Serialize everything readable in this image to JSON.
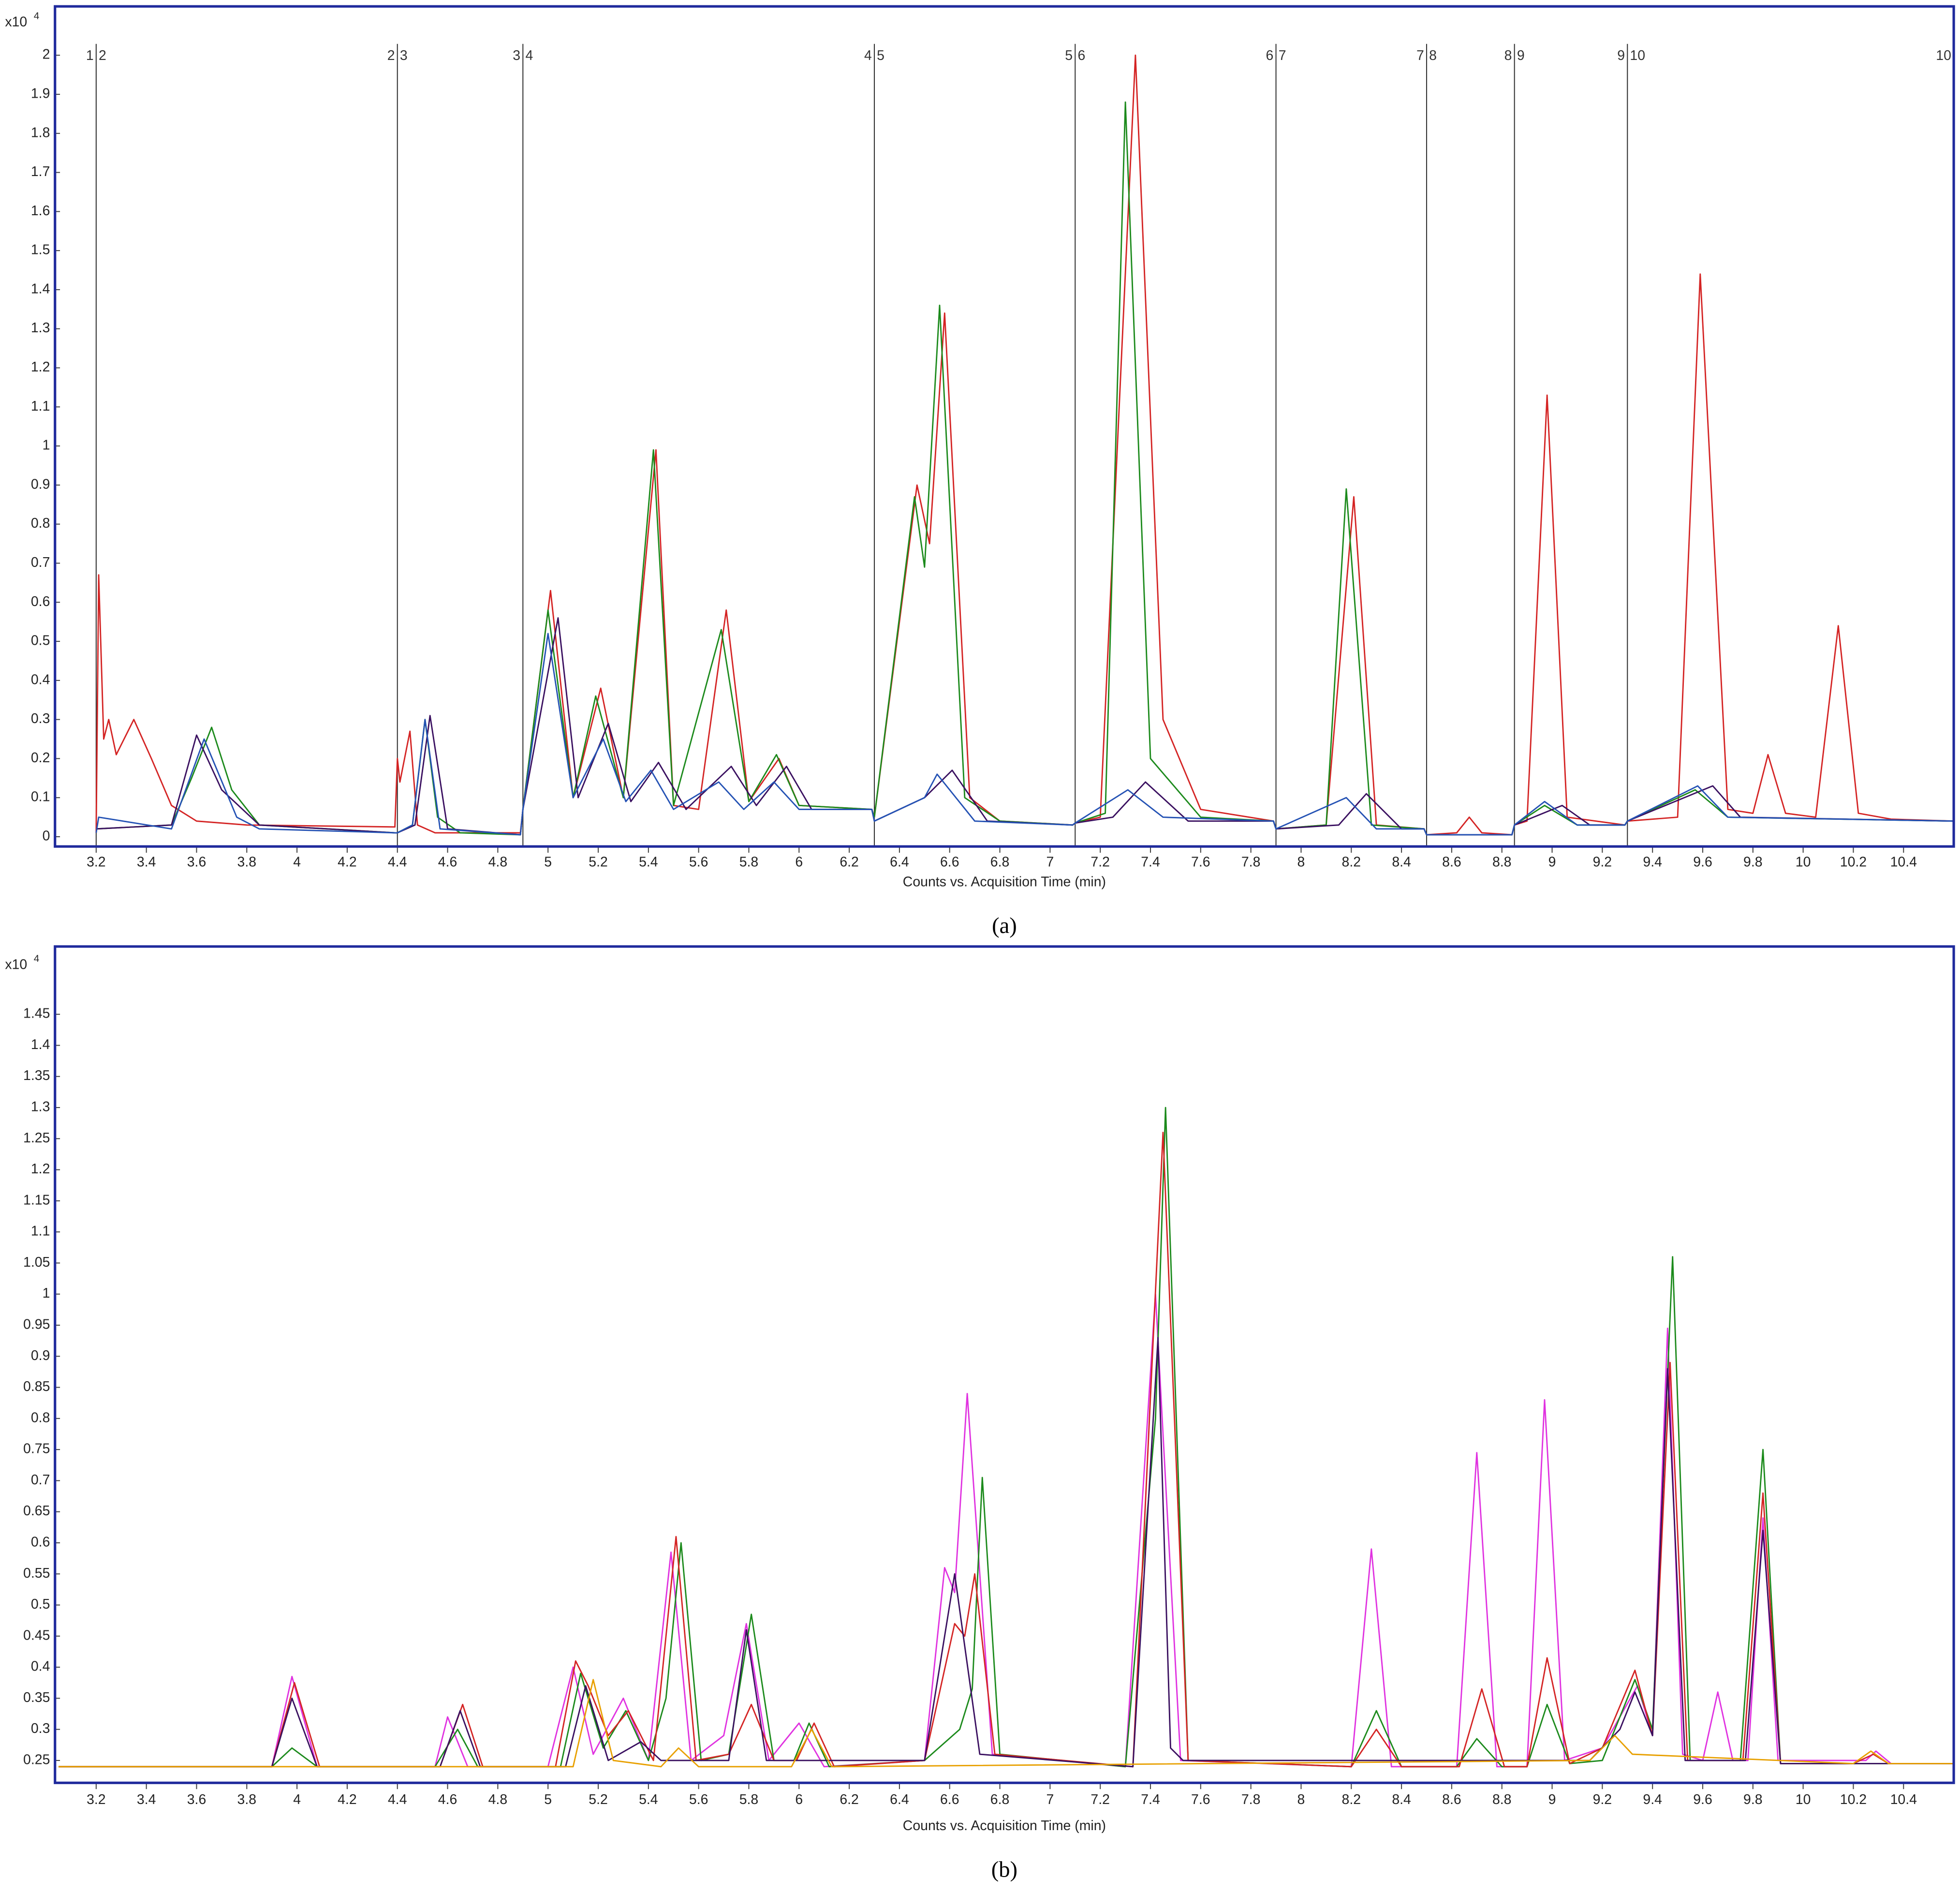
{
  "chart_data": [
    {
      "type": "line",
      "caption": "(a)",
      "y_scale_label": "x10",
      "y_scale_exponent": "4",
      "x_label": "Counts vs. Acquisition Time (min)",
      "xlim": [
        3.036,
        10.6
      ],
      "ylim": [
        -0.025,
        2.125
      ],
      "xticks": [
        3.2,
        3.4,
        3.6,
        3.8,
        4,
        4.2,
        4.4,
        4.6,
        4.8,
        5,
        5.2,
        5.4,
        5.6,
        5.8,
        6,
        6.2,
        6.4,
        6.6,
        6.8,
        7,
        7.2,
        7.4,
        7.6,
        7.8,
        8,
        8.2,
        8.4,
        8.6,
        8.8,
        9,
        9.2,
        9.4,
        9.6,
        9.8,
        10,
        10.2,
        10.4
      ],
      "yticks": [
        0,
        0.1,
        0.2,
        0.3,
        0.4,
        0.5,
        0.6,
        0.7,
        0.8,
        0.9,
        1,
        1.1,
        1.2,
        1.3,
        1.4,
        1.5,
        1.6,
        1.7,
        1.8,
        1.9,
        2
      ],
      "grid": false,
      "segments": [
        {
          "x": 3.2,
          "left": "1",
          "right": "2"
        },
        {
          "x": 4.4,
          "left": "2",
          "right": "3"
        },
        {
          "x": 4.9,
          "left": "3",
          "right": "4"
        },
        {
          "x": 6.3,
          "left": "4",
          "right": "5"
        },
        {
          "x": 7.1,
          "left": "5",
          "right": "6"
        },
        {
          "x": 7.9,
          "left": "6",
          "right": "7"
        },
        {
          "x": 8.5,
          "left": "7",
          "right": "8"
        },
        {
          "x": 8.85,
          "left": "8",
          "right": "9"
        },
        {
          "x": 9.3,
          "left": "9",
          "right": "10"
        },
        {
          "x": 10.6,
          "left": "10"
        }
      ],
      "series": [
        {
          "color": "#d42424",
          "x": [
            3.2,
            3.21,
            3.23,
            3.25,
            3.28,
            3.35,
            3.42,
            3.5,
            3.6,
            3.8,
            4.39,
            4.4,
            4.41,
            4.45,
            4.48,
            4.55,
            4.89,
            4.9,
            5.01,
            5.1,
            5.21,
            5.3,
            5.43,
            5.5,
            5.6,
            5.71,
            5.8,
            5.92,
            6.0,
            6.29,
            6.3,
            6.47,
            6.52,
            6.58,
            6.68,
            6.8,
            7.09,
            7.1,
            7.2,
            7.34,
            7.45,
            7.6,
            7.89,
            7.9,
            8.1,
            8.21,
            8.3,
            8.49,
            8.5,
            8.62,
            8.67,
            8.72,
            8.84,
            8.85,
            8.9,
            8.98,
            9.06,
            9.29,
            9.3,
            9.5,
            9.59,
            9.7,
            9.8,
            9.86,
            9.93,
            10.05,
            10.14,
            10.22,
            10.35,
            10.6
          ],
          "values": [
            0.01,
            0.67,
            0.25,
            0.3,
            0.21,
            0.3,
            0.2,
            0.08,
            0.04,
            0.03,
            0.025,
            0.2,
            0.14,
            0.27,
            0.03,
            0.01,
            0.01,
            0.07,
            0.63,
            0.1,
            0.38,
            0.1,
            0.99,
            0.08,
            0.07,
            0.58,
            0.09,
            0.2,
            0.08,
            0.07,
            0.05,
            0.9,
            0.75,
            1.34,
            0.1,
            0.04,
            0.03,
            0.035,
            0.05,
            2.0,
            0.3,
            0.07,
            0.04,
            0.02,
            0.03,
            0.87,
            0.03,
            0.02,
            0.005,
            0.01,
            0.05,
            0.01,
            0.005,
            0.03,
            0.04,
            1.13,
            0.05,
            0.03,
            0.04,
            0.05,
            1.44,
            0.07,
            0.06,
            0.21,
            0.06,
            0.05,
            0.54,
            0.06,
            0.045,
            0.04
          ]
        },
        {
          "color": "#1c8a1c",
          "x": [
            3.2,
            3.5,
            3.58,
            3.66,
            3.74,
            3.85,
            4.39,
            4.4,
            4.46,
            4.51,
            4.56,
            4.65,
            4.89,
            4.9,
            5.0,
            5.1,
            5.19,
            5.3,
            5.42,
            5.5,
            5.69,
            5.8,
            5.91,
            6.0,
            6.29,
            6.3,
            6.46,
            6.5,
            6.56,
            6.66,
            6.8,
            7.09,
            7.1,
            7.22,
            7.3,
            7.4,
            7.6,
            7.89,
            7.9,
            8.1,
            8.18,
            8.28,
            8.49,
            8.5,
            8.84,
            8.85,
            8.97,
            9.1,
            9.29,
            9.3,
            9.57,
            9.7,
            10.6
          ],
          "values": [
            0.02,
            0.03,
            0.15,
            0.28,
            0.12,
            0.03,
            0.01,
            0.01,
            0.03,
            0.3,
            0.05,
            0.01,
            0.005,
            0.07,
            0.58,
            0.1,
            0.36,
            0.1,
            0.99,
            0.08,
            0.53,
            0.09,
            0.21,
            0.08,
            0.07,
            0.05,
            0.87,
            0.69,
            1.36,
            0.1,
            0.04,
            0.03,
            0.035,
            0.06,
            1.88,
            0.2,
            0.05,
            0.04,
            0.02,
            0.03,
            0.89,
            0.03,
            0.02,
            0.005,
            0.005,
            0.03,
            0.08,
            0.03,
            0.03,
            0.04,
            0.12,
            0.05,
            0.04
          ]
        },
        {
          "color": "#3a1060",
          "x": [
            3.2,
            3.5,
            3.6,
            3.7,
            3.85,
            4.39,
            4.4,
            4.47,
            4.53,
            4.6,
            4.89,
            4.9,
            5.04,
            5.12,
            5.24,
            5.33,
            5.44,
            5.55,
            5.73,
            5.83,
            5.95,
            6.05,
            6.29,
            6.3,
            6.5,
            6.61,
            6.75,
            7.09,
            7.1,
            7.25,
            7.38,
            7.55,
            7.89,
            7.9,
            8.15,
            8.26,
            8.4,
            8.49,
            8.5,
            8.84,
            8.85,
            9.04,
            9.15,
            9.29,
            9.3,
            9.64,
            9.75,
            10.6
          ],
          "values": [
            0.02,
            0.03,
            0.26,
            0.12,
            0.03,
            0.01,
            0.01,
            0.03,
            0.31,
            0.02,
            0.005,
            0.07,
            0.56,
            0.1,
            0.29,
            0.09,
            0.19,
            0.07,
            0.18,
            0.08,
            0.18,
            0.07,
            0.07,
            0.04,
            0.1,
            0.17,
            0.04,
            0.03,
            0.035,
            0.05,
            0.14,
            0.04,
            0.04,
            0.02,
            0.03,
            0.11,
            0.02,
            0.02,
            0.005,
            0.005,
            0.03,
            0.08,
            0.03,
            0.03,
            0.04,
            0.13,
            0.05,
            0.04
          ]
        },
        {
          "color": "#2452b4",
          "x": [
            3.2,
            3.21,
            3.5,
            3.63,
            3.76,
            3.85,
            4.39,
            4.4,
            4.46,
            4.51,
            4.57,
            4.89,
            4.9,
            5.0,
            5.1,
            5.22,
            5.31,
            5.41,
            5.5,
            5.68,
            5.78,
            5.9,
            6.0,
            6.29,
            6.3,
            6.5,
            6.55,
            6.7,
            7.09,
            7.1,
            7.31,
            7.45,
            7.89,
            7.9,
            8.18,
            8.3,
            8.49,
            8.5,
            8.84,
            8.85,
            8.97,
            9.1,
            9.29,
            9.3,
            9.58,
            9.7,
            10.6
          ],
          "values": [
            0.01,
            0.05,
            0.02,
            0.25,
            0.05,
            0.02,
            0.01,
            0.01,
            0.03,
            0.3,
            0.02,
            0.005,
            0.07,
            0.52,
            0.1,
            0.25,
            0.09,
            0.17,
            0.07,
            0.14,
            0.07,
            0.14,
            0.07,
            0.07,
            0.04,
            0.1,
            0.16,
            0.04,
            0.03,
            0.035,
            0.12,
            0.05,
            0.04,
            0.02,
            0.1,
            0.02,
            0.02,
            0.005,
            0.005,
            0.03,
            0.09,
            0.03,
            0.03,
            0.04,
            0.13,
            0.05,
            0.04
          ]
        }
      ]
    },
    {
      "type": "line",
      "caption": "(b)",
      "y_scale_label": "x10",
      "y_scale_exponent": "4",
      "x_label": "Counts vs. Acquisition Time (min)",
      "xlim": [
        3.036,
        10.6
      ],
      "ylim": [
        0.214,
        1.559
      ],
      "xticks": [
        3.2,
        3.4,
        3.6,
        3.8,
        4,
        4.2,
        4.4,
        4.6,
        4.8,
        5,
        5.2,
        5.4,
        5.6,
        5.8,
        6,
        6.2,
        6.4,
        6.6,
        6.8,
        7,
        7.2,
        7.4,
        7.6,
        7.8,
        8,
        8.2,
        8.4,
        8.6,
        8.8,
        9,
        9.2,
        9.4,
        9.6,
        9.8,
        10,
        10.2,
        10.4
      ],
      "yticks": [
        0.25,
        0.3,
        0.35,
        0.4,
        0.45,
        0.5,
        0.55,
        0.6,
        0.65,
        0.7,
        0.75,
        0.8,
        0.85,
        0.9,
        0.95,
        1,
        1.05,
        1.1,
        1.15,
        1.2,
        1.25,
        1.3,
        1.35,
        1.4,
        1.45
      ],
      "grid": false,
      "series": [
        {
          "color": "#e032e0",
          "x": [
            3.05,
            3.9,
            3.98,
            4.08,
            4.55,
            4.6,
            4.68,
            5.0,
            5.1,
            5.18,
            5.3,
            5.4,
            5.49,
            5.57,
            5.7,
            5.79,
            5.88,
            6.0,
            6.1,
            6.5,
            6.58,
            6.62,
            6.67,
            6.77,
            7.3,
            7.42,
            7.52,
            8.2,
            8.28,
            8.36,
            8.62,
            8.7,
            8.78,
            8.9,
            8.97,
            9.05,
            9.2,
            9.34,
            9.4,
            9.46,
            9.52,
            9.6,
            9.66,
            9.72,
            9.78,
            9.84,
            9.9,
            10.25,
            10.29,
            10.35,
            10.6
          ],
          "values": [
            0.24,
            0.24,
            0.385,
            0.24,
            0.24,
            0.32,
            0.24,
            0.24,
            0.4,
            0.26,
            0.35,
            0.25,
            0.585,
            0.25,
            0.29,
            0.47,
            0.25,
            0.31,
            0.24,
            0.25,
            0.56,
            0.52,
            0.84,
            0.26,
            0.24,
            1.0,
            0.25,
            0.24,
            0.59,
            0.24,
            0.24,
            0.745,
            0.24,
            0.24,
            0.83,
            0.25,
            0.27,
            0.37,
            0.29,
            0.945,
            0.26,
            0.25,
            0.36,
            0.25,
            0.25,
            0.64,
            0.25,
            0.25,
            0.265,
            0.245,
            0.245
          ]
        },
        {
          "color": "#1c8a1c",
          "x": [
            3.05,
            3.9,
            3.98,
            4.08,
            4.55,
            4.64,
            4.72,
            5.05,
            5.13,
            5.22,
            5.31,
            5.4,
            5.47,
            5.53,
            5.61,
            5.72,
            5.81,
            5.9,
            5.98,
            6.04,
            6.12,
            6.5,
            6.64,
            6.69,
            6.73,
            6.8,
            7.3,
            7.42,
            7.46,
            7.55,
            8.2,
            8.3,
            8.4,
            8.62,
            8.7,
            8.8,
            8.9,
            8.98,
            9.07,
            9.2,
            9.33,
            9.4,
            9.48,
            9.55,
            9.75,
            9.84,
            9.91,
            10.2,
            10.6
          ],
          "values": [
            0.24,
            0.24,
            0.27,
            0.24,
            0.24,
            0.3,
            0.24,
            0.24,
            0.39,
            0.27,
            0.33,
            0.25,
            0.35,
            0.6,
            0.25,
            0.26,
            0.485,
            0.25,
            0.25,
            0.31,
            0.24,
            0.25,
            0.3,
            0.365,
            0.705,
            0.26,
            0.24,
            0.8,
            1.3,
            0.25,
            0.24,
            0.33,
            0.24,
            0.24,
            0.285,
            0.24,
            0.24,
            0.34,
            0.245,
            0.25,
            0.38,
            0.3,
            1.06,
            0.25,
            0.25,
            0.75,
            0.245,
            0.245,
            0.245
          ]
        },
        {
          "color": "#d42424",
          "x": [
            3.05,
            3.9,
            3.99,
            4.09,
            4.57,
            4.66,
            4.74,
            5.03,
            5.11,
            5.16,
            5.24,
            5.32,
            5.42,
            5.51,
            5.59,
            5.72,
            5.81,
            5.9,
            5.99,
            6.06,
            6.14,
            6.5,
            6.62,
            6.66,
            6.7,
            6.78,
            7.33,
            7.45,
            7.55,
            8.2,
            8.3,
            8.4,
            8.63,
            8.72,
            8.81,
            8.9,
            8.98,
            9.07,
            9.2,
            9.33,
            9.4,
            9.47,
            9.54,
            9.76,
            9.84,
            9.91,
            10.2,
            10.28,
            10.34,
            10.6
          ],
          "values": [
            0.24,
            0.24,
            0.375,
            0.24,
            0.24,
            0.34,
            0.24,
            0.24,
            0.41,
            0.37,
            0.29,
            0.33,
            0.25,
            0.61,
            0.25,
            0.26,
            0.34,
            0.25,
            0.25,
            0.31,
            0.24,
            0.25,
            0.47,
            0.45,
            0.55,
            0.26,
            0.24,
            1.26,
            0.25,
            0.24,
            0.3,
            0.24,
            0.24,
            0.365,
            0.24,
            0.24,
            0.415,
            0.245,
            0.27,
            0.395,
            0.29,
            0.89,
            0.25,
            0.25,
            0.68,
            0.245,
            0.245,
            0.26,
            0.245,
            0.245
          ]
        },
        {
          "color": "#3a1060",
          "x": [
            3.05,
            3.9,
            3.98,
            4.08,
            4.57,
            4.65,
            4.73,
            5.07,
            5.15,
            5.24,
            5.37,
            5.45,
            5.72,
            5.79,
            5.87,
            6.5,
            6.62,
            6.72,
            7.33,
            7.43,
            7.48,
            7.53,
            9.15,
            9.27,
            9.33,
            9.4,
            9.46,
            9.53,
            9.77,
            9.84,
            9.91,
            10.6
          ],
          "values": [
            0.24,
            0.24,
            0.35,
            0.24,
            0.24,
            0.33,
            0.24,
            0.24,
            0.37,
            0.25,
            0.28,
            0.25,
            0.25,
            0.46,
            0.25,
            0.25,
            0.55,
            0.26,
            0.24,
            0.93,
            0.27,
            0.25,
            0.25,
            0.3,
            0.36,
            0.29,
            0.88,
            0.25,
            0.25,
            0.62,
            0.245,
            0.245
          ]
        },
        {
          "color": "#e8a000",
          "x": [
            3.05,
            5.1,
            5.18,
            5.26,
            5.45,
            5.52,
            5.6,
            5.97,
            6.05,
            6.13,
            9.15,
            9.25,
            9.32,
            10.2,
            10.27,
            10.34,
            10.6
          ],
          "values": [
            0.24,
            0.24,
            0.38,
            0.25,
            0.24,
            0.27,
            0.24,
            0.24,
            0.3,
            0.24,
            0.25,
            0.29,
            0.26,
            0.245,
            0.265,
            0.245,
            0.245
          ]
        }
      ]
    }
  ]
}
